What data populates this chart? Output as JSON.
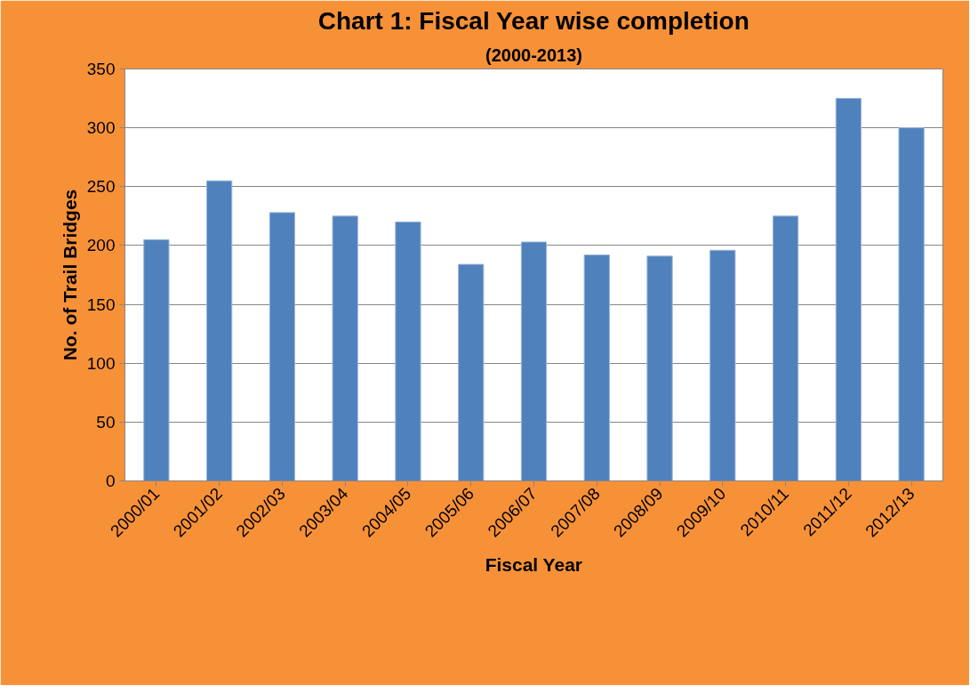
{
  "chart_data": {
    "type": "bar",
    "title": "Chart 1: Fiscal Year wise completion",
    "subtitle": "(2000-2013)",
    "xlabel": "Fiscal Year",
    "ylabel": "No. of Trail Bridges",
    "categories": [
      "2000/01",
      "2001/02",
      "2002/03",
      "2003/04",
      "2004/05",
      "2005/06",
      "2006/07",
      "2007/08",
      "2008/09",
      "2009/10",
      "2010/11",
      "2011/12",
      "2012/13"
    ],
    "values": [
      205,
      255,
      228,
      225,
      220,
      184,
      203,
      192,
      191,
      196,
      225,
      325,
      300
    ],
    "color": "#4f81bd",
    "ylim": [
      0,
      350
    ],
    "yticks": [
      0,
      50,
      100,
      150,
      200,
      250,
      300,
      350
    ],
    "grid": "y"
  }
}
